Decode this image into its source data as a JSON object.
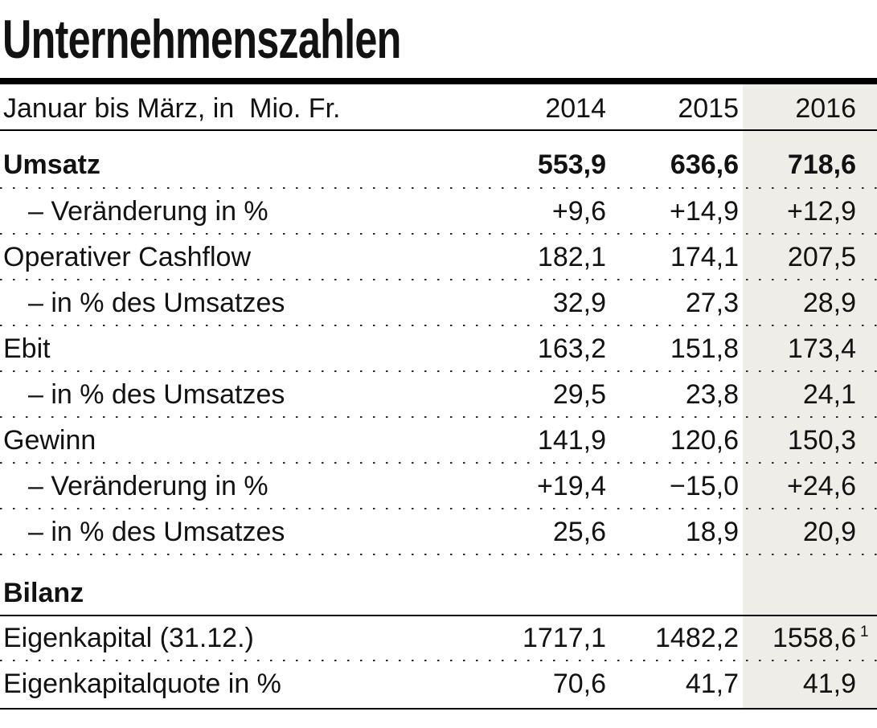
{
  "chart_data": {
    "type": "table",
    "title": "Unternehmenszahlen",
    "subtitle": "Januar bis März, in  Mio. Fr.",
    "columns": [
      "2014",
      "2015",
      "2016"
    ],
    "highlighted_column": "2016",
    "highlight_color": "#eeede7",
    "rows": [
      {
        "label": "Umsatz",
        "indent": false,
        "bold": true,
        "separator": "dotted",
        "values": [
          "553,9",
          "636,6",
          "718,6"
        ]
      },
      {
        "label": "– Veränderung in %",
        "indent": true,
        "bold": false,
        "separator": "dotted",
        "values": [
          "+9,6",
          "+14,9",
          "+12,9"
        ]
      },
      {
        "label": "Operativer Cashflow",
        "indent": false,
        "bold": false,
        "separator": "dotted",
        "values": [
          "182,1",
          "174,1",
          "207,5"
        ]
      },
      {
        "label": "– in % des Umsatzes",
        "indent": true,
        "bold": false,
        "separator": "dotted",
        "values": [
          "32,9",
          "27,3",
          "28,9"
        ]
      },
      {
        "label": "Ebit",
        "indent": false,
        "bold": false,
        "separator": "dotted",
        "values": [
          "163,2",
          "151,8",
          "173,4"
        ]
      },
      {
        "label": "– in % des Umsatzes",
        "indent": true,
        "bold": false,
        "separator": "dotted",
        "values": [
          "29,5",
          "23,8",
          "24,1"
        ]
      },
      {
        "label": "Gewinn",
        "indent": false,
        "bold": false,
        "separator": "dotted",
        "values": [
          "141,9",
          "120,6",
          "150,3"
        ]
      },
      {
        "label": "– Veränderung in %",
        "indent": true,
        "bold": false,
        "separator": "dotted",
        "values": [
          "+19,4",
          "−15,0",
          "+24,6"
        ]
      },
      {
        "label": "– in % des Umsatzes",
        "indent": true,
        "bold": false,
        "separator": "dotted",
        "values": [
          "25,6",
          "18,9",
          "20,9"
        ]
      },
      {
        "label": "Bilanz",
        "indent": false,
        "bold": true,
        "separator": "solid",
        "values": [
          "",
          "",
          ""
        ]
      },
      {
        "label": "Eigenkapital (31.12.)",
        "indent": false,
        "bold": false,
        "separator": "dotted",
        "values": [
          "1717,1",
          "1482,2",
          "1558,6"
        ],
        "footnote": "1"
      },
      {
        "label": "Eigenkapitalquote in %",
        "indent": false,
        "bold": false,
        "separator": "solid",
        "values": [
          "70,6",
          "41,7",
          "41,9"
        ]
      }
    ]
  }
}
